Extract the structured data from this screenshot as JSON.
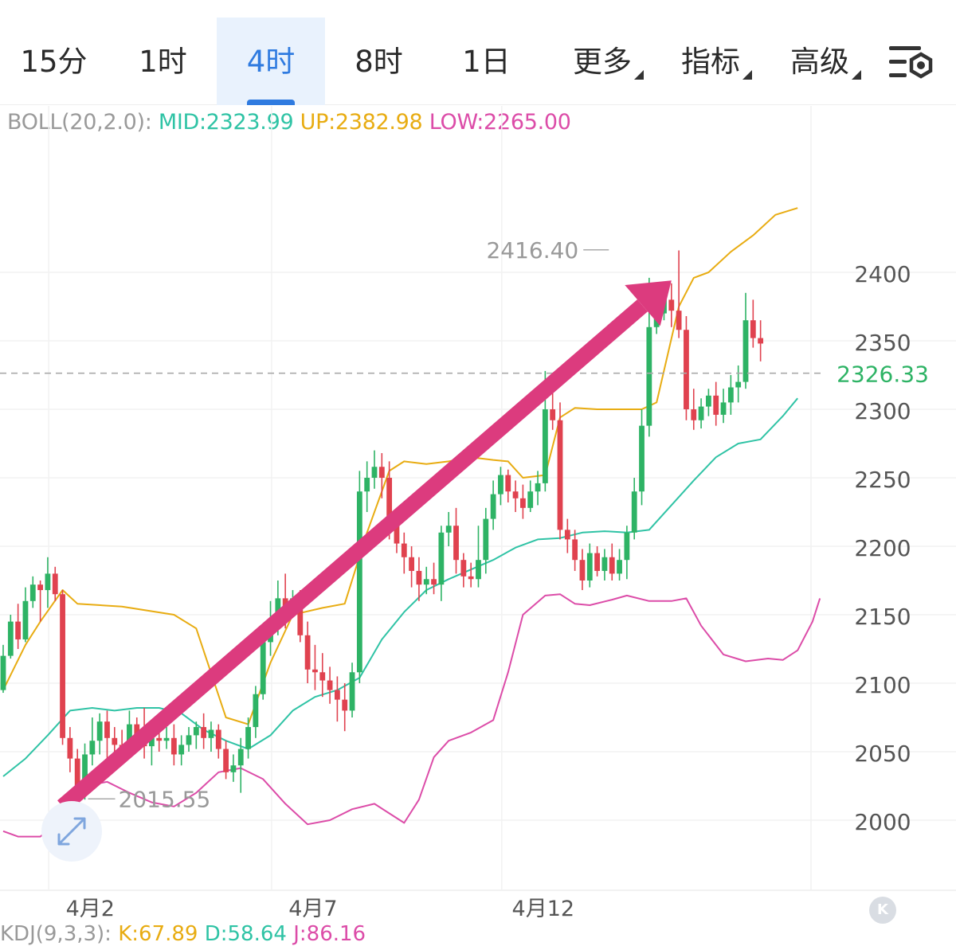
{
  "tabs": [
    {
      "label": "15分",
      "active": false,
      "dropdown": false
    },
    {
      "label": "1时",
      "active": false,
      "dropdown": false
    },
    {
      "label": "4时",
      "active": true,
      "dropdown": false
    },
    {
      "label": "8时",
      "active": false,
      "dropdown": false
    },
    {
      "label": "1日",
      "active": false,
      "dropdown": false
    },
    {
      "label": "更多",
      "active": false,
      "dropdown": true
    },
    {
      "label": "指标",
      "active": false,
      "dropdown": true
    },
    {
      "label": "高级",
      "active": false,
      "dropdown": true
    }
  ],
  "toolbar": {
    "settings_icon": "chart-settings-icon"
  },
  "indicator": {
    "name": "BOLL(20,2.0):",
    "mid": "MID:2323.99",
    "up": "UP:2382.98",
    "low": "LOW:2265.00"
  },
  "kdj": {
    "name": "KDJ(9,3,3):",
    "k": "K:67.89",
    "d": "D:58.64",
    "j": "J:86.16"
  },
  "colors": {
    "up_candle": "#2eb365",
    "down_candle": "#e0424f",
    "mid_line": "#2fc3a5",
    "upper_line": "#e8ac12",
    "lower_line": "#dc4ca8",
    "arrow": "#dc3b7e",
    "active_tab": "#2f7be0"
  },
  "chart_data": {
    "type": "candlestick",
    "title": "",
    "y_ticks": [
      2000,
      2050,
      2100,
      2150,
      2200,
      2250,
      2300,
      2350,
      2400
    ],
    "ylim": [
      1965,
      2465
    ],
    "x_ticks": [
      {
        "label": "4月2",
        "index": 4
      },
      {
        "label": "4月7",
        "index": 34
      },
      {
        "label": "4月12",
        "index": 65
      }
    ],
    "current_price": "2326.33",
    "high_label": "2416.40",
    "low_label": "2015.55",
    "high_index": 82,
    "low_index": 11,
    "candles": [
      [
        2095,
        2120,
        2093,
        2128
      ],
      [
        2120,
        2145,
        2118,
        2150
      ],
      [
        2145,
        2132,
        2125,
        2158
      ],
      [
        2132,
        2160,
        2130,
        2170
      ],
      [
        2160,
        2172,
        2155,
        2178
      ],
      [
        2172,
        2168,
        2145,
        2175
      ],
      [
        2168,
        2180,
        2155,
        2192
      ],
      [
        2180,
        2165,
        2160,
        2185
      ],
      [
        2165,
        2060,
        2055,
        2168
      ],
      [
        2060,
        2045,
        2035,
        2068
      ],
      [
        2045,
        2022,
        2018,
        2052
      ],
      [
        2022,
        2048,
        2015,
        2056
      ],
      [
        2048,
        2058,
        2040,
        2075
      ],
      [
        2058,
        2072,
        2048,
        2078
      ],
      [
        2072,
        2060,
        2045,
        2080
      ],
      [
        2060,
        2055,
        2038,
        2068
      ],
      [
        2055,
        2052,
        2045,
        2066
      ],
      [
        2052,
        2070,
        2048,
        2080
      ],
      [
        2070,
        2062,
        2050,
        2075
      ],
      [
        2062,
        2054,
        2045,
        2082
      ],
      [
        2054,
        2060,
        2040,
        2070
      ],
      [
        2060,
        2058,
        2050,
        2068
      ],
      [
        2058,
        2060,
        2052,
        2068
      ],
      [
        2060,
        2048,
        2040,
        2070
      ],
      [
        2048,
        2055,
        2040,
        2062
      ],
      [
        2055,
        2062,
        2050,
        2068
      ],
      [
        2062,
        2068,
        2052,
        2072
      ],
      [
        2068,
        2060,
        2052,
        2078
      ],
      [
        2060,
        2066,
        2050,
        2072
      ],
      [
        2066,
        2052,
        2045,
        2070
      ],
      [
        2052,
        2035,
        2030,
        2058
      ],
      [
        2035,
        2040,
        2028,
        2048
      ],
      [
        2040,
        2052,
        2020,
        2060
      ],
      [
        2052,
        2068,
        2045,
        2075
      ],
      [
        2068,
        2092,
        2060,
        2098
      ],
      [
        2092,
        2130,
        2088,
        2140
      ],
      [
        2130,
        2145,
        2120,
        2160
      ],
      [
        2145,
        2162,
        2135,
        2175
      ],
      [
        2162,
        2152,
        2140,
        2180
      ],
      [
        2152,
        2162,
        2148,
        2168
      ],
      [
        2162,
        2135,
        2130,
        2168
      ],
      [
        2135,
        2110,
        2100,
        2145
      ],
      [
        2110,
        2108,
        2095,
        2128
      ],
      [
        2108,
        2102,
        2090,
        2122
      ],
      [
        2102,
        2095,
        2085,
        2112
      ],
      [
        2095,
        2088,
        2072,
        2105
      ],
      [
        2088,
        2080,
        2065,
        2100
      ],
      [
        2080,
        2108,
        2075,
        2115
      ],
      [
        2108,
        2240,
        2100,
        2255
      ],
      [
        2240,
        2250,
        2225,
        2262
      ],
      [
        2250,
        2258,
        2242,
        2270
      ],
      [
        2258,
        2250,
        2235,
        2268
      ],
      [
        2250,
        2215,
        2205,
        2262
      ],
      [
        2215,
        2202,
        2195,
        2228
      ],
      [
        2202,
        2192,
        2180,
        2210
      ],
      [
        2192,
        2182,
        2170,
        2200
      ],
      [
        2182,
        2172,
        2160,
        2192
      ],
      [
        2172,
        2176,
        2165,
        2185
      ],
      [
        2176,
        2172,
        2165,
        2188
      ],
      [
        2172,
        2210,
        2160,
        2215
      ],
      [
        2210,
        2215,
        2200,
        2225
      ],
      [
        2215,
        2190,
        2180,
        2228
      ],
      [
        2190,
        2178,
        2170,
        2195
      ],
      [
        2178,
        2176,
        2170,
        2188
      ],
      [
        2176,
        2190,
        2170,
        2215
      ],
      [
        2190,
        2220,
        2180,
        2228
      ],
      [
        2220,
        2238,
        2212,
        2248
      ],
      [
        2238,
        2252,
        2230,
        2258
      ],
      [
        2252,
        2240,
        2232,
        2256
      ],
      [
        2240,
        2235,
        2225,
        2248
      ],
      [
        2235,
        2228,
        2220,
        2245
      ],
      [
        2228,
        2240,
        2225,
        2248
      ],
      [
        2240,
        2246,
        2230,
        2255
      ],
      [
        2246,
        2300,
        2240,
        2328
      ],
      [
        2300,
        2292,
        2285,
        2312
      ],
      [
        2292,
        2212,
        2205,
        2305
      ],
      [
        2212,
        2205,
        2195,
        2220
      ],
      [
        2205,
        2190,
        2182,
        2212
      ],
      [
        2190,
        2175,
        2168,
        2198
      ],
      [
        2175,
        2195,
        2170,
        2202
      ],
      [
        2195,
        2182,
        2178,
        2200
      ],
      [
        2182,
        2192,
        2175,
        2198
      ],
      [
        2192,
        2180,
        2175,
        2202
      ],
      [
        2180,
        2190,
        2175,
        2198
      ],
      [
        2190,
        2210,
        2176,
        2215
      ],
      [
        2210,
        2240,
        2205,
        2250
      ],
      [
        2240,
        2288,
        2230,
        2300
      ],
      [
        2288,
        2360,
        2280,
        2396
      ],
      [
        2360,
        2370,
        2355,
        2382
      ],
      [
        2370,
        2380,
        2365,
        2392
      ],
      [
        2380,
        2372,
        2360,
        2392
      ],
      [
        2372,
        2358,
        2352,
        2416
      ],
      [
        2358,
        2300,
        2292,
        2368
      ],
      [
        2300,
        2292,
        2285,
        2315
      ],
      [
        2292,
        2302,
        2286,
        2308
      ],
      [
        2302,
        2310,
        2295,
        2315
      ],
      [
        2310,
        2296,
        2288,
        2320
      ],
      [
        2296,
        2305,
        2290,
        2315
      ],
      [
        2305,
        2316,
        2296,
        2325
      ],
      [
        2316,
        2320,
        2305,
        2332
      ],
      [
        2320,
        2365,
        2315,
        2385
      ],
      [
        2365,
        2352,
        2345,
        2380
      ],
      [
        2352,
        2348,
        2335,
        2365
      ]
    ],
    "upper": [
      [
        0,
        2095
      ],
      [
        3,
        2128
      ],
      [
        5,
        2145
      ],
      [
        8,
        2168
      ],
      [
        10,
        2158
      ],
      [
        16,
        2156
      ],
      [
        23,
        2150
      ],
      [
        26,
        2140
      ],
      [
        30,
        2075
      ],
      [
        33,
        2070
      ],
      [
        36,
        2115
      ],
      [
        39,
        2150
      ],
      [
        43,
        2155
      ],
      [
        46,
        2158
      ],
      [
        49,
        2210
      ],
      [
        52,
        2255
      ],
      [
        54,
        2262
      ],
      [
        57,
        2260
      ],
      [
        60,
        2262
      ],
      [
        63,
        2265
      ],
      [
        66,
        2263
      ],
      [
        68,
        2262
      ],
      [
        70,
        2250
      ],
      [
        73,
        2252
      ],
      [
        75,
        2294
      ],
      [
        77,
        2301
      ],
      [
        80,
        2300
      ],
      [
        83,
        2300
      ],
      [
        86,
        2300
      ],
      [
        88,
        2305
      ],
      [
        91,
        2375
      ],
      [
        93,
        2396
      ],
      [
        95,
        2400
      ],
      [
        98,
        2415
      ],
      [
        101,
        2427
      ],
      [
        104,
        2442
      ],
      [
        107,
        2447
      ]
    ],
    "mid": [
      [
        0,
        2032
      ],
      [
        3,
        2045
      ],
      [
        6,
        2062
      ],
      [
        9,
        2080
      ],
      [
        12,
        2082
      ],
      [
        15,
        2080
      ],
      [
        18,
        2082
      ],
      [
        21,
        2082
      ],
      [
        24,
        2078
      ],
      [
        27,
        2066
      ],
      [
        30,
        2058
      ],
      [
        33,
        2052
      ],
      [
        36,
        2062
      ],
      [
        39,
        2080
      ],
      [
        42,
        2090
      ],
      [
        45,
        2095
      ],
      [
        48,
        2104
      ],
      [
        51,
        2132
      ],
      [
        54,
        2152
      ],
      [
        57,
        2168
      ],
      [
        60,
        2176
      ],
      [
        63,
        2183
      ],
      [
        66,
        2190
      ],
      [
        69,
        2199
      ],
      [
        72,
        2205
      ],
      [
        75,
        2206
      ],
      [
        78,
        2210
      ],
      [
        81,
        2211
      ],
      [
        84,
        2210
      ],
      [
        87,
        2212
      ],
      [
        90,
        2230
      ],
      [
        93,
        2248
      ],
      [
        96,
        2265
      ],
      [
        99,
        2275
      ],
      [
        102,
        2278
      ],
      [
        105,
        2295
      ],
      [
        107,
        2308
      ]
    ],
    "lower": [
      [
        0,
        1992
      ],
      [
        2,
        1988
      ],
      [
        5,
        1988
      ],
      [
        8,
        2002
      ],
      [
        11,
        2025
      ],
      [
        14,
        2028
      ],
      [
        17,
        2020
      ],
      [
        20,
        2013
      ],
      [
        23,
        2010
      ],
      [
        26,
        2020
      ],
      [
        29,
        2035
      ],
      [
        32,
        2038
      ],
      [
        35,
        2030
      ],
      [
        38,
        2012
      ],
      [
        41,
        1997
      ],
      [
        44,
        2000
      ],
      [
        47,
        2008
      ],
      [
        50,
        2012
      ],
      [
        52,
        2005
      ],
      [
        54,
        1998
      ],
      [
        56,
        2015
      ],
      [
        58,
        2046
      ],
      [
        60,
        2058
      ],
      [
        63,
        2064
      ],
      [
        66,
        2073
      ],
      [
        68,
        2108
      ],
      [
        70,
        2150
      ],
      [
        73,
        2164
      ],
      [
        75,
        2165
      ],
      [
        77,
        2158
      ],
      [
        79,
        2157
      ],
      [
        82,
        2161
      ],
      [
        84,
        2164
      ],
      [
        87,
        2160
      ],
      [
        90,
        2160
      ],
      [
        92,
        2162
      ],
      [
        94,
        2142
      ],
      [
        97,
        2121
      ],
      [
        100,
        2116
      ],
      [
        103,
        2118
      ],
      [
        105,
        2117
      ],
      [
        107,
        2124
      ],
      [
        109,
        2145
      ],
      [
        110,
        2162
      ]
    ],
    "trend_arrow": {
      "from": [
        8,
        2010
      ],
      "to": [
        90,
        2394
      ]
    }
  }
}
